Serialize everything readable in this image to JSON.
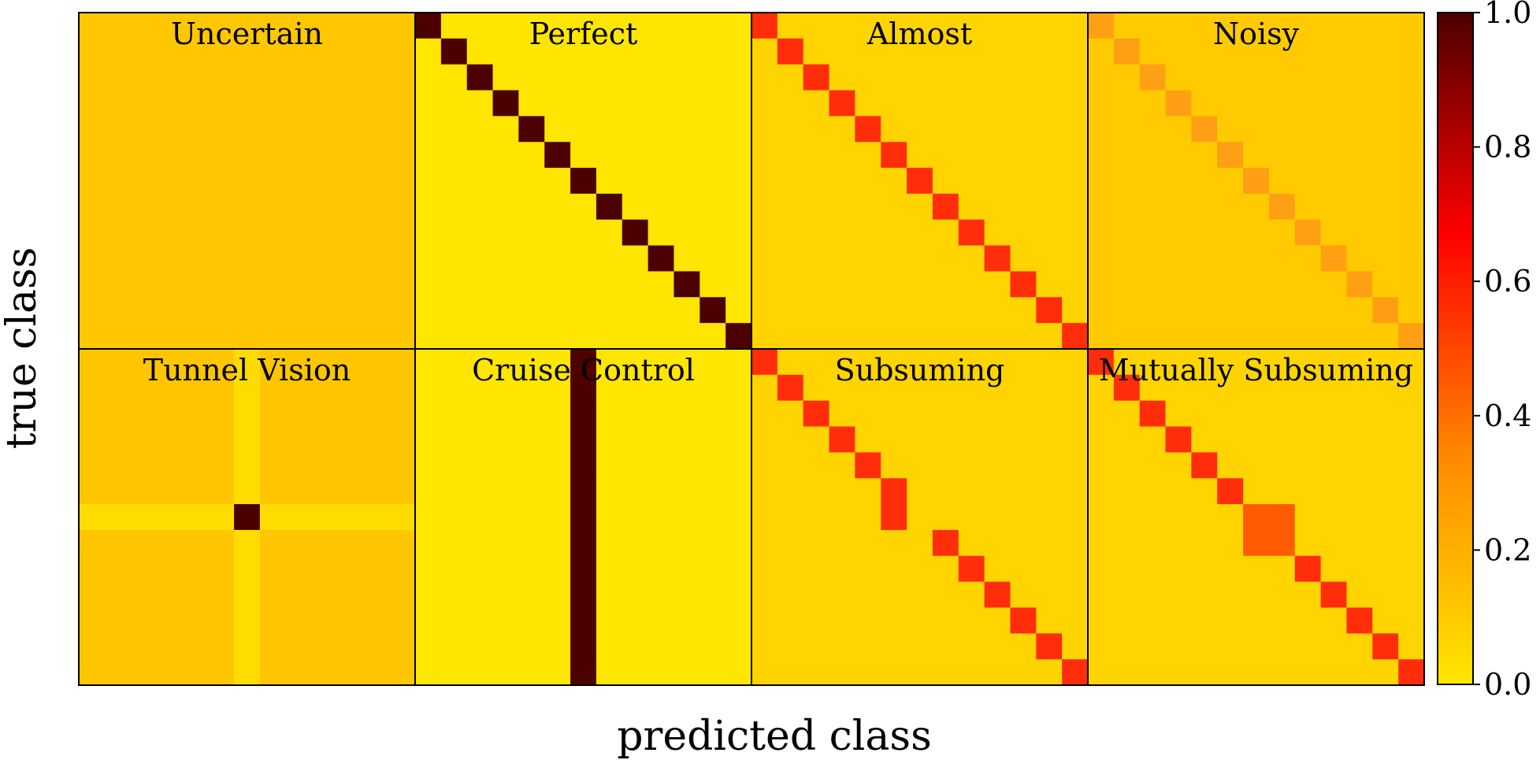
{
  "chart_data": {
    "type": "heatmap",
    "layout": {
      "rows": 2,
      "cols": 4
    },
    "n_classes": 13,
    "xlabel": "predicted class",
    "ylabel": "true class",
    "colormap": "hot_r",
    "colorbar": {
      "range": [
        0.0,
        1.0
      ],
      "ticks": [
        "0.0",
        "0.2",
        "0.4",
        "0.6",
        "0.8",
        "1.0"
      ]
    },
    "axis_ticks": "none",
    "panels": [
      {
        "title": "Uncertain",
        "kind": "uniform",
        "value": 0.077
      },
      {
        "title": "Perfect",
        "kind": "diagonal",
        "diag": 1.0,
        "off": 0.0
      },
      {
        "title": "Almost",
        "kind": "diagonal",
        "diag": 0.45,
        "off": 0.046
      },
      {
        "title": "Noisy",
        "kind": "diagonal",
        "diag": 0.2,
        "off": 0.067
      },
      {
        "title": "Tunnel Vision",
        "kind": "tunnel",
        "class_index": 6,
        "cell": 1.0,
        "row_col": 0.025,
        "other": 0.08
      },
      {
        "title": "Cruise Control",
        "kind": "column",
        "class_index": 6,
        "col": 1.0,
        "off": 0.0
      },
      {
        "title": "Subsuming",
        "kind": "subsuming",
        "pair": [
          5,
          6
        ],
        "pair_col": 5,
        "diag": 0.45,
        "pair_value": 0.45,
        "off": 0.046
      },
      {
        "title": "Mutually Subsuming",
        "kind": "mutual",
        "block": [
          6,
          7
        ],
        "diag": 0.45,
        "block_value": 0.34,
        "off": 0.046
      }
    ]
  }
}
